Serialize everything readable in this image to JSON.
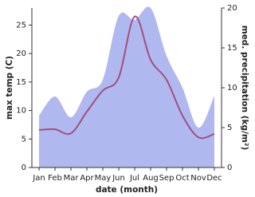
{
  "chart_data": {
    "type": "area-line",
    "categories": [
      "Jan",
      "Feb",
      "Mar",
      "Apr",
      "May",
      "Jun",
      "Jul",
      "Aug",
      "Sep",
      "Oct",
      "Nov",
      "Dec"
    ],
    "x_label": "date (month)",
    "y_label": "max temp (C)",
    "y2_label": "med. precipitation (kg/m²)",
    "series": [
      {
        "name": "med. precipitation",
        "type": "area",
        "axis": "y2",
        "color": "#b0b8f0",
        "values": [
          6.5,
          8.9,
          6.3,
          9.5,
          11.0,
          19.0,
          18.5,
          20.0,
          14.0,
          10.0,
          5.0,
          9.0
        ]
      },
      {
        "name": "max temp",
        "type": "line",
        "color": "#a0507e",
        "values": [
          6.6,
          6.7,
          6.0,
          9.8,
          13.5,
          15.8,
          26.5,
          18.9,
          15.4,
          9.1,
          5.3,
          5.9
        ]
      }
    ],
    "ylim": [
      0,
      28
    ],
    "yticks": [
      0,
      5,
      10,
      15,
      20,
      25
    ],
    "y2lim": [
      0,
      20
    ],
    "y2ticks": [
      0,
      5,
      10,
      15,
      20
    ]
  }
}
